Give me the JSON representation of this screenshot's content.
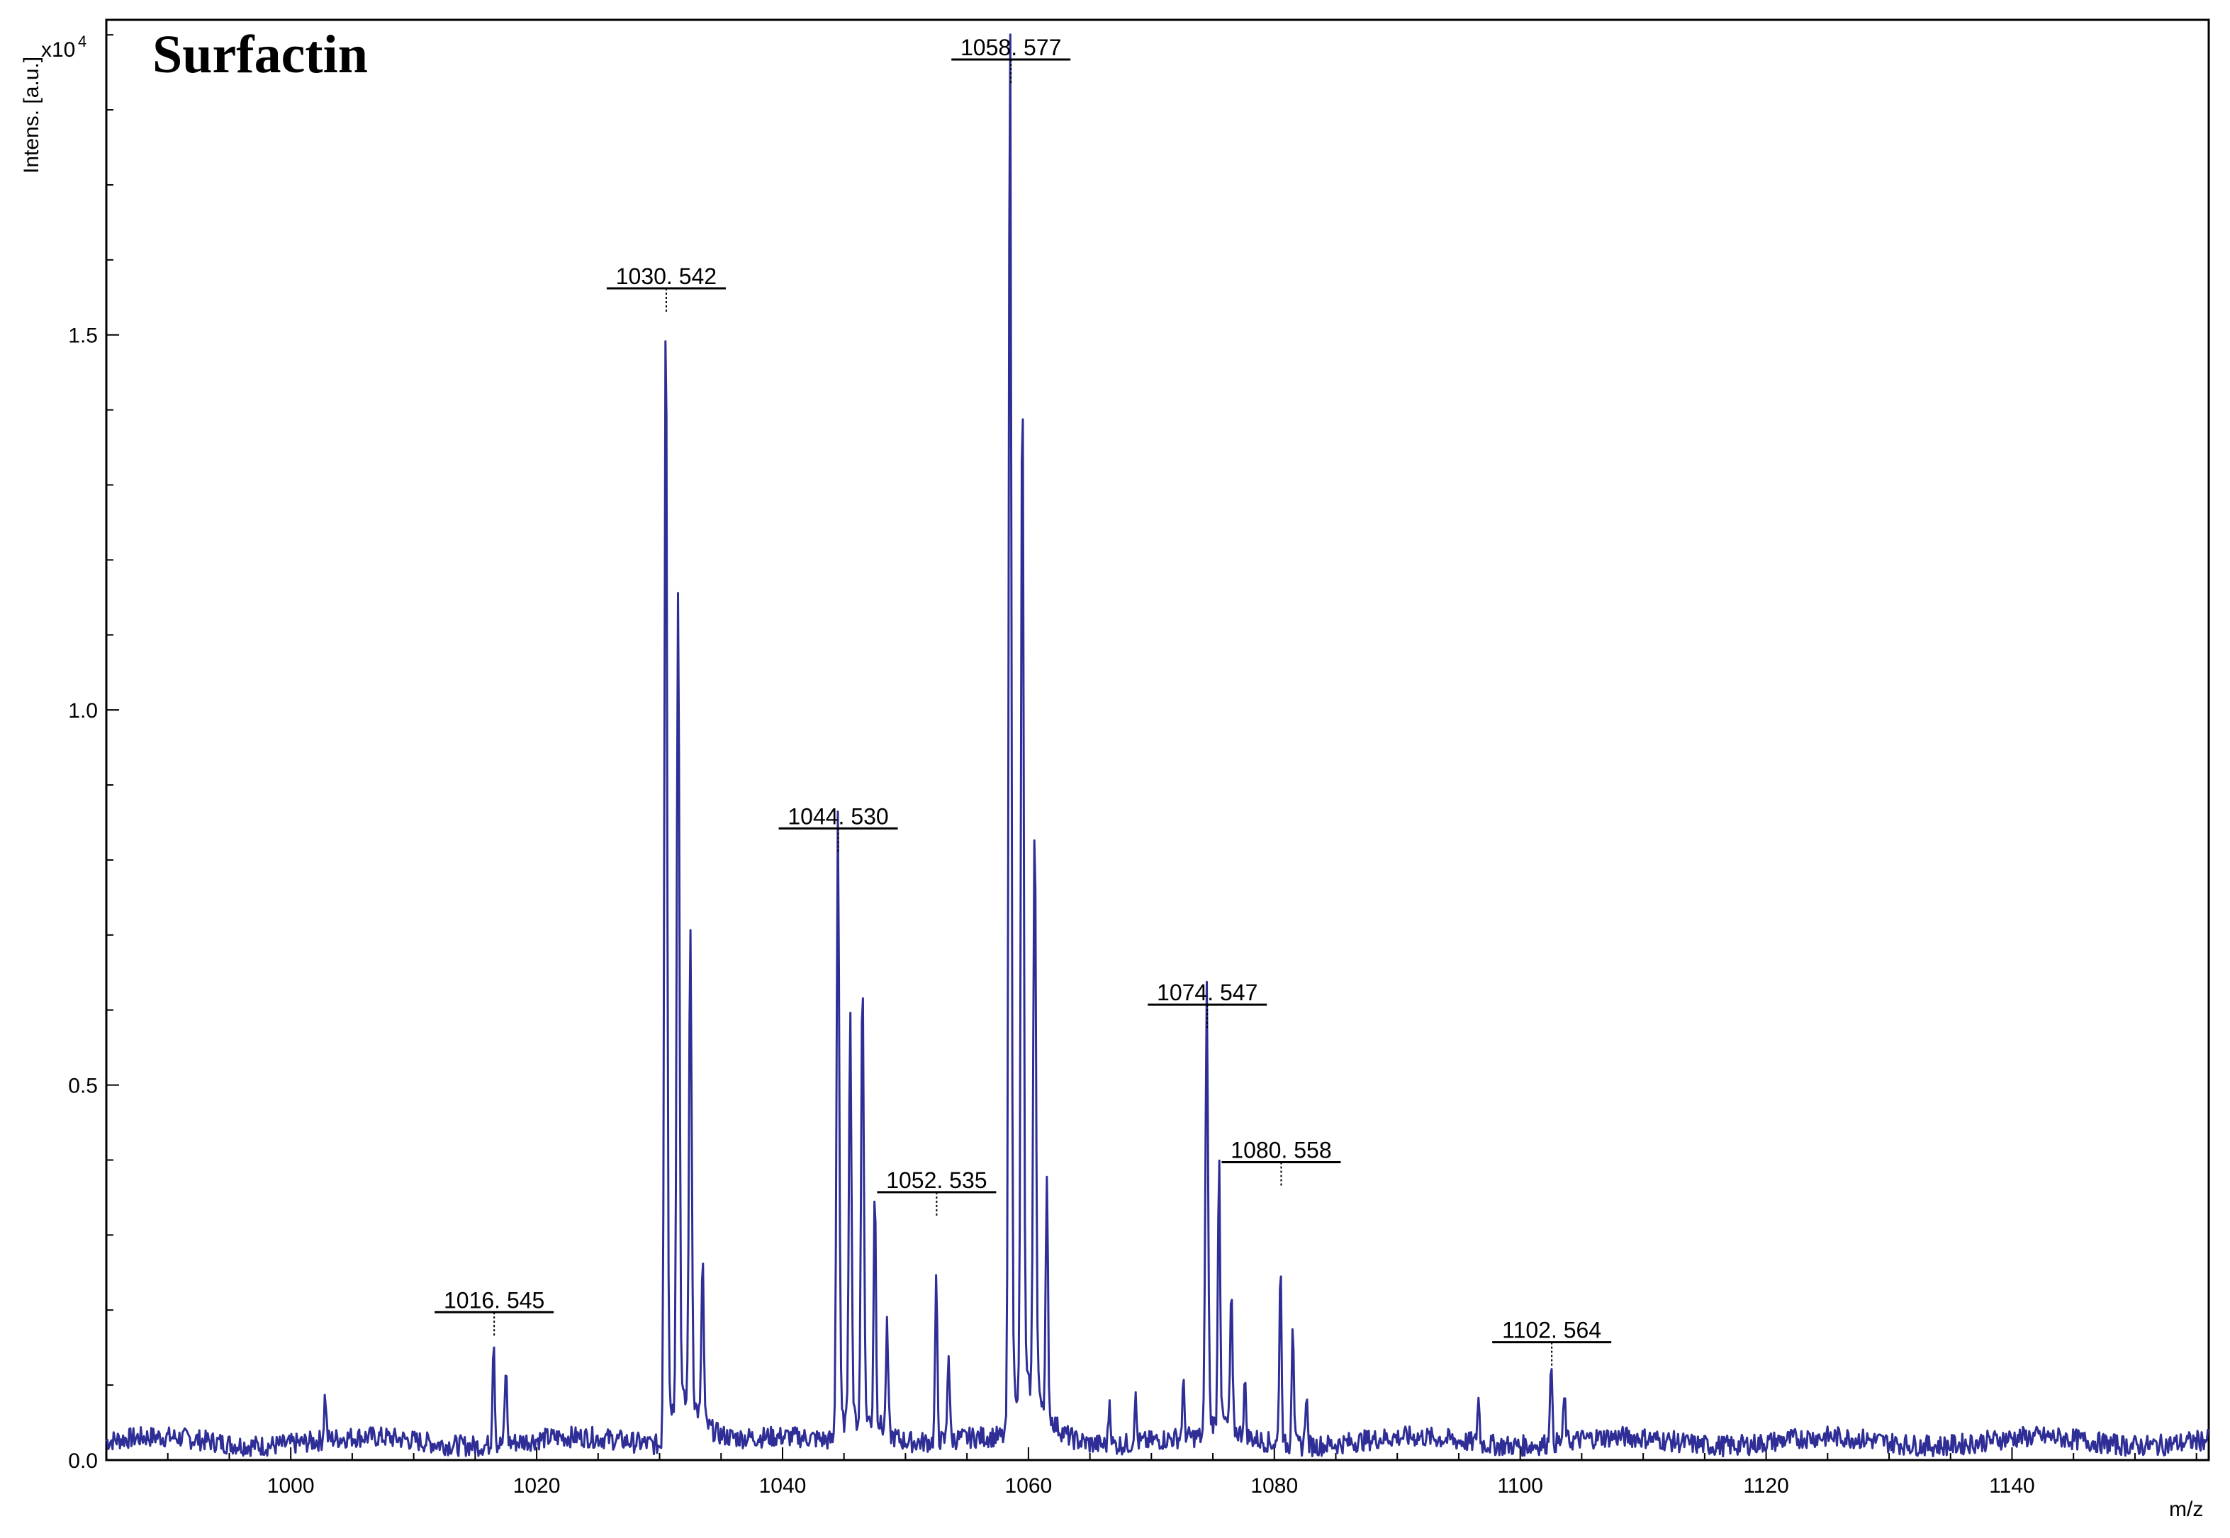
{
  "chart_data": {
    "type": "line",
    "title": "Surfactin",
    "xlabel": "m/z",
    "ylabel": "Intens. [a.u.]",
    "y_multiplier": "x10",
    "y_multiplier_exponent": "4",
    "xlim": [
      985,
      1156
    ],
    "ylim": [
      0,
      1.92
    ],
    "x_ticks": [
      1000,
      1020,
      1040,
      1060,
      1080,
      1100,
      1120,
      1140
    ],
    "x_tick_labels": [
      "1000",
      "1020",
      "1040",
      "1060",
      "1080",
      "1100",
      "1120",
      "1140"
    ],
    "y_ticks": [
      0.0,
      0.5,
      1.0,
      1.5
    ],
    "y_tick_labels": [
      "0.0",
      "0.5",
      "1.0",
      "1.5"
    ],
    "line_color": "#2e2e96",
    "baseline": 0.025,
    "peaks": [
      {
        "x": 1002.8,
        "y": 0.06
      },
      {
        "x": 1016.5,
        "y": 0.145
      },
      {
        "x": 1017.5,
        "y": 0.1
      },
      {
        "x": 1030.5,
        "y": 1.52
      },
      {
        "x": 1031.5,
        "y": 1.1
      },
      {
        "x": 1032.5,
        "y": 0.62
      },
      {
        "x": 1033.5,
        "y": 0.22
      },
      {
        "x": 1044.5,
        "y": 0.8
      },
      {
        "x": 1045.5,
        "y": 0.53
      },
      {
        "x": 1046.5,
        "y": 0.59
      },
      {
        "x": 1047.5,
        "y": 0.32
      },
      {
        "x": 1048.5,
        "y": 0.14
      },
      {
        "x": 1052.5,
        "y": 0.21
      },
      {
        "x": 1053.5,
        "y": 0.12
      },
      {
        "x": 1058.5,
        "y": 1.84
      },
      {
        "x": 1059.5,
        "y": 1.35
      },
      {
        "x": 1060.5,
        "y": 0.77
      },
      {
        "x": 1061.5,
        "y": 0.3
      },
      {
        "x": 1066.6,
        "y": 0.06
      },
      {
        "x": 1068.7,
        "y": 0.06
      },
      {
        "x": 1072.6,
        "y": 0.07
      },
      {
        "x": 1074.5,
        "y": 0.57
      },
      {
        "x": 1075.5,
        "y": 0.36
      },
      {
        "x": 1076.5,
        "y": 0.18
      },
      {
        "x": 1077.6,
        "y": 0.07
      },
      {
        "x": 1080.5,
        "y": 0.24
      },
      {
        "x": 1081.5,
        "y": 0.17
      },
      {
        "x": 1082.6,
        "y": 0.07
      },
      {
        "x": 1096.6,
        "y": 0.06
      },
      {
        "x": 1102.5,
        "y": 0.11
      },
      {
        "x": 1103.6,
        "y": 0.06
      }
    ],
    "peak_labels": [
      {
        "text": "1016. 545",
        "x": 1016.545,
        "y": 0.165
      },
      {
        "text": "1030. 542",
        "x": 1030.542,
        "y": 1.53
      },
      {
        "text": "1044. 530",
        "x": 1044.53,
        "y": 0.81
      },
      {
        "text": "1052. 535",
        "x": 1052.535,
        "y": 0.325
      },
      {
        "text": "1058. 577",
        "x": 1058.577,
        "y": 1.835
      },
      {
        "text": "1074. 547",
        "x": 1074.547,
        "y": 0.575
      },
      {
        "text": "1080. 558",
        "x": 1080.558,
        "y": 0.365
      },
      {
        "text": "1102. 564",
        "x": 1102.564,
        "y": 0.125
      }
    ]
  }
}
